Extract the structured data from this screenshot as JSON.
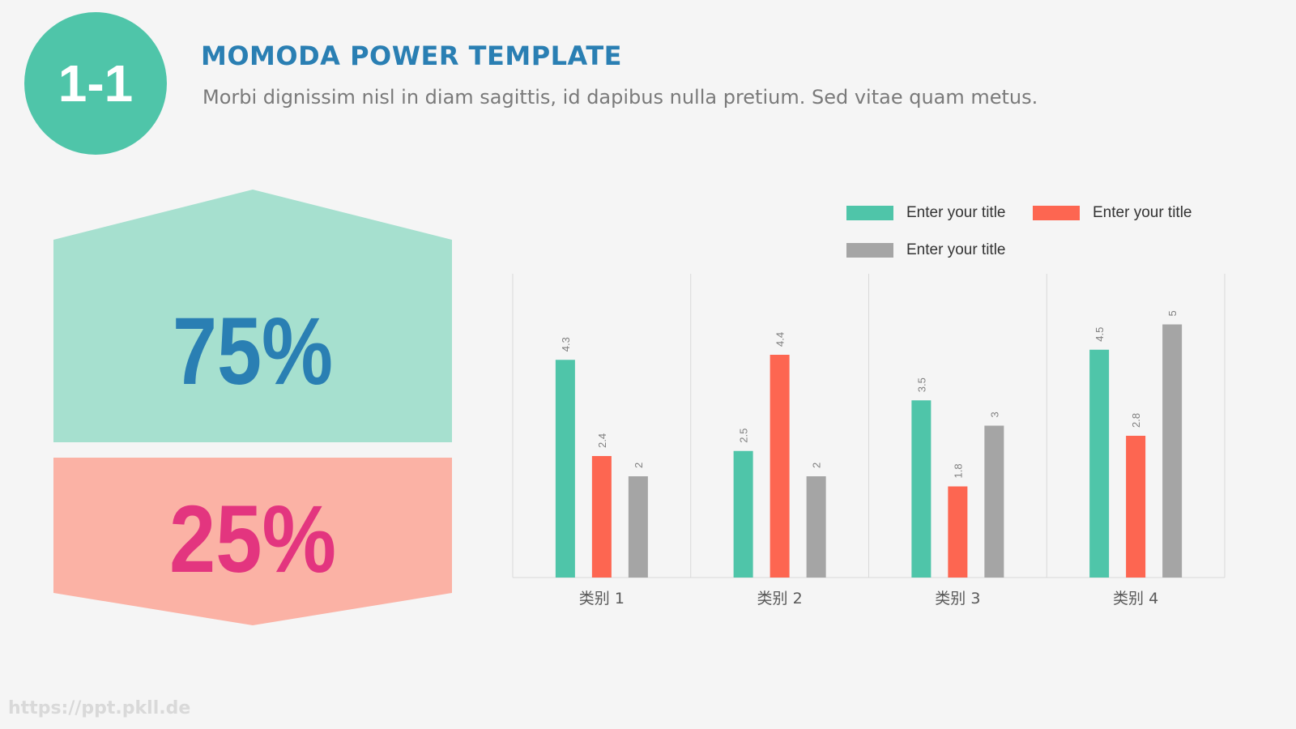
{
  "header": {
    "badge": "1-1",
    "title": "MOMODA POWER TEMPLATE",
    "subtitle": "Morbi dignissim nisl in diam sagittis, id dapibus nulla pretium. Sed vitae quam metus."
  },
  "stats": {
    "top": {
      "value": "75%",
      "color": "#2a7fb3",
      "bg": "#a6e0cf"
    },
    "bottom": {
      "value": "25%",
      "color": "#e3357f",
      "bg": "#fbb2a5"
    }
  },
  "watermark": "https://ppt.pkll.de",
  "colors": {
    "accent": "#4fc5a9",
    "series1": "#4fc5a9",
    "series2": "#fd6651",
    "series3": "#a5a5a5"
  },
  "chart_data": {
    "type": "bar",
    "categories": [
      "类别 1",
      "类别 2",
      "类别 3",
      "类别 4"
    ],
    "series": [
      {
        "name": "Enter your title",
        "values": [
          4.3,
          2.5,
          3.5,
          4.5
        ],
        "color": "#4fc5a9"
      },
      {
        "name": "Enter your title",
        "values": [
          2.4,
          4.4,
          1.8,
          2.8
        ],
        "color": "#fd6651"
      },
      {
        "name": "Enter your title",
        "values": [
          2,
          2,
          3,
          5
        ],
        "color": "#a5a5a5"
      }
    ],
    "data_labels": [
      [
        "4.3",
        "2.5",
        "3.5",
        "4.5"
      ],
      [
        "2.4",
        "4.4",
        "1.8",
        "2.8"
      ],
      [
        "2",
        "2",
        "3",
        "5"
      ]
    ],
    "ylim": [
      0,
      6
    ],
    "grid": "vertical-category-separators",
    "legend_position": "top-right"
  }
}
